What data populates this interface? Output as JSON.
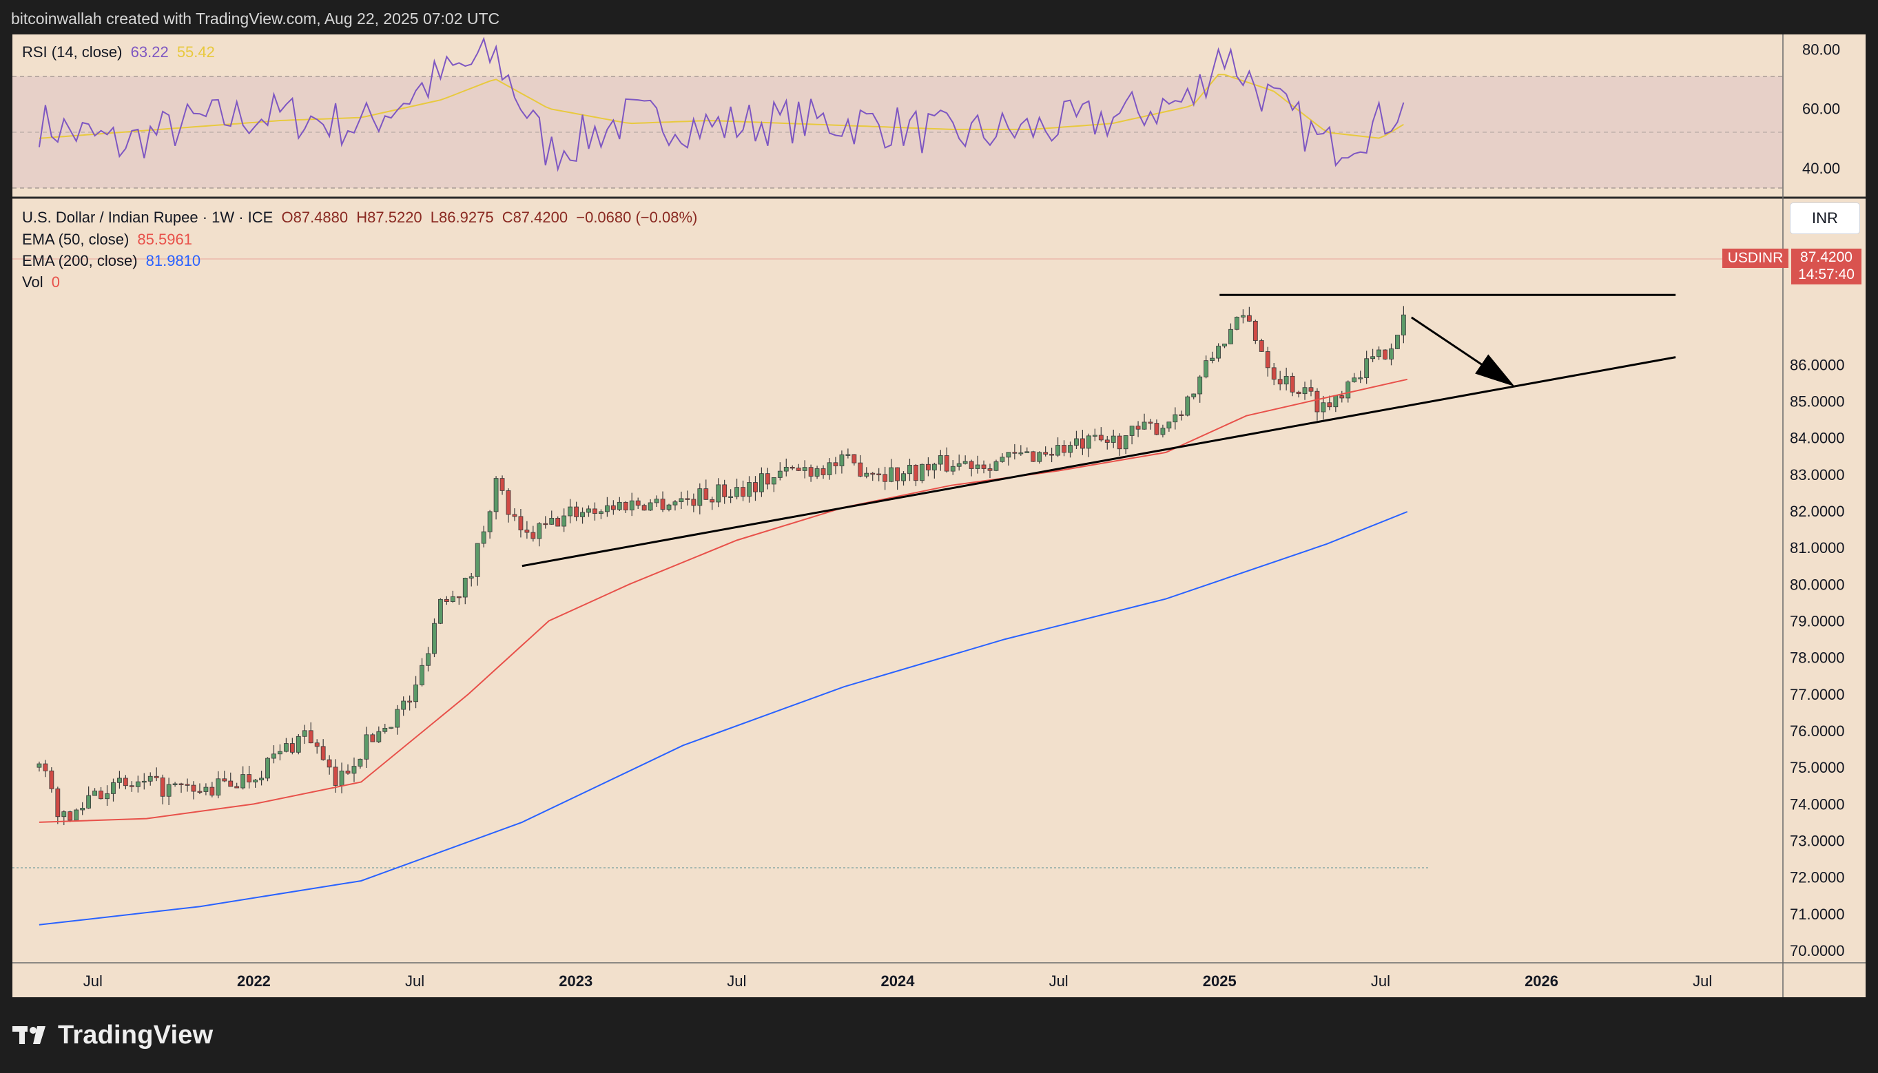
{
  "caption": "bitcoinwallah created with TradingView.com, Aug 22, 2025 07:02 UTC",
  "brand": "TradingView",
  "colors": {
    "ema50": "#e8514a",
    "ema200": "#2962ff",
    "rsi": "#7e57c2",
    "rsi_ma": "#e8c93e",
    "up": "#5b9a68",
    "down": "#d04a45",
    "bg": "#f2e0cc"
  },
  "rsi_legend": {
    "label": "RSI (14, close)",
    "value": "63.22",
    "ma_value": "55.42"
  },
  "main_legend": {
    "title": "U.S. Dollar / Indian Rupee · 1W · ICE",
    "o": "O87.4880",
    "h": "H87.5220",
    "l": "L86.9275",
    "c": "C87.4200",
    "chg": "−0.0680 (−0.08%)",
    "ema50_label": "EMA (50, close)",
    "ema50_value": "85.5961",
    "ema200_label": "EMA (200, close)",
    "ema200_value": "81.9810",
    "vol_label": "Vol",
    "vol_value": "0"
  },
  "currency_button": "INR",
  "price_tag": {
    "symbol": "USDINR",
    "price": "87.4200",
    "countdown": "14:57:40"
  },
  "chart_data": [
    {
      "type": "line",
      "title": "RSI (14, close)",
      "ylim": [
        30,
        85
      ],
      "yticks": [
        "80.00",
        "60.00",
        "40.00"
      ],
      "x": [
        "2021-05",
        "2021-08",
        "2021-11",
        "2022-02",
        "2022-05",
        "2022-08",
        "2022-10",
        "2022-12",
        "2023-03",
        "2023-06",
        "2023-09",
        "2023-12",
        "2024-03",
        "2024-06",
        "2024-09",
        "2024-12",
        "2025-01",
        "2025-03",
        "2025-05",
        "2025-07",
        "2025-08"
      ],
      "series": [
        {
          "name": "RSI",
          "values": [
            55,
            48,
            56,
            58,
            54,
            71,
            78,
            45,
            57,
            54,
            56,
            55,
            51,
            53,
            57,
            63,
            80,
            62,
            47,
            55,
            63.22
          ]
        },
        {
          "name": "MA",
          "values": [
            50,
            52,
            54,
            56,
            57,
            63,
            70,
            60,
            55,
            56,
            55,
            54,
            53,
            53,
            55,
            61,
            72,
            66,
            52,
            50,
            55.42
          ]
        }
      ],
      "bands": [
        70,
        50,
        30
      ]
    },
    {
      "type": "candlestick",
      "title": "U.S. Dollar / Indian Rupee · 1W · ICE",
      "ylim": [
        69.7,
        90.5
      ],
      "yticks": [
        "86.0000",
        "85.0000",
        "84.0000",
        "83.0000",
        "82.0000",
        "81.0000",
        "80.0000",
        "79.0000",
        "78.0000",
        "77.0000",
        "76.0000",
        "75.0000",
        "74.0000",
        "73.0000",
        "72.0000",
        "71.0000",
        "70.0000"
      ],
      "xticks": [
        "Jul",
        "2022",
        "Jul",
        "2023",
        "Jul",
        "2024",
        "Jul",
        "2025",
        "Jul",
        "2026",
        "Jul"
      ],
      "close_points": [
        {
          "x": "2021-05",
          "y": 75.0
        },
        {
          "x": "2021-06",
          "y": 73.4
        },
        {
          "x": "2021-07",
          "y": 74.4
        },
        {
          "x": "2021-09",
          "y": 74.5
        },
        {
          "x": "2021-11",
          "y": 74.3
        },
        {
          "x": "2022-01",
          "y": 74.8
        },
        {
          "x": "2022-03",
          "y": 76.0
        },
        {
          "x": "2022-04",
          "y": 74.5
        },
        {
          "x": "2022-05",
          "y": 75.5
        },
        {
          "x": "2022-07",
          "y": 77.0
        },
        {
          "x": "2022-08",
          "y": 79.7
        },
        {
          "x": "2022-09",
          "y": 80.0
        },
        {
          "x": "2022-10",
          "y": 82.8
        },
        {
          "x": "2022-11",
          "y": 81.2
        },
        {
          "x": "2023-01",
          "y": 82.0
        },
        {
          "x": "2023-03",
          "y": 82.2
        },
        {
          "x": "2023-05",
          "y": 82.3
        },
        {
          "x": "2023-07",
          "y": 82.6
        },
        {
          "x": "2023-09",
          "y": 83.1
        },
        {
          "x": "2023-11",
          "y": 83.3
        },
        {
          "x": "2024-01",
          "y": 83.0
        },
        {
          "x": "2024-03",
          "y": 83.3
        },
        {
          "x": "2024-05",
          "y": 83.4
        },
        {
          "x": "2024-07",
          "y": 83.7
        },
        {
          "x": "2024-09",
          "y": 83.9
        },
        {
          "x": "2024-11",
          "y": 84.4
        },
        {
          "x": "2024-12",
          "y": 85.2
        },
        {
          "x": "2025-01",
          "y": 86.6
        },
        {
          "x": "2025-02",
          "y": 87.3
        },
        {
          "x": "2025-03",
          "y": 85.8
        },
        {
          "x": "2025-04",
          "y": 85.3
        },
        {
          "x": "2025-05",
          "y": 84.8
        },
        {
          "x": "2025-06",
          "y": 85.8
        },
        {
          "x": "2025-07",
          "y": 86.2
        },
        {
          "x": "2025-08",
          "y": 87.42
        }
      ],
      "series": [
        {
          "name": "EMA (50, close)",
          "points": [
            {
              "x": "2021-05",
              "y": 73.5
            },
            {
              "x": "2021-09",
              "y": 73.6
            },
            {
              "x": "2022-01",
              "y": 74.0
            },
            {
              "x": "2022-05",
              "y": 74.6
            },
            {
              "x": "2022-09",
              "y": 77.0
            },
            {
              "x": "2022-12",
              "y": 79.0
            },
            {
              "x": "2023-03",
              "y": 80.0
            },
            {
              "x": "2023-07",
              "y": 81.2
            },
            {
              "x": "2023-11",
              "y": 82.1
            },
            {
              "x": "2024-03",
              "y": 82.7
            },
            {
              "x": "2024-07",
              "y": 83.1
            },
            {
              "x": "2024-11",
              "y": 83.6
            },
            {
              "x": "2025-02",
              "y": 84.6
            },
            {
              "x": "2025-05",
              "y": 85.1
            },
            {
              "x": "2025-08",
              "y": 85.5961
            }
          ]
        },
        {
          "name": "EMA (200, close)",
          "points": [
            {
              "x": "2021-05",
              "y": 70.7
            },
            {
              "x": "2021-11",
              "y": 71.2
            },
            {
              "x": "2022-05",
              "y": 71.9
            },
            {
              "x": "2022-11",
              "y": 73.5
            },
            {
              "x": "2023-05",
              "y": 75.6
            },
            {
              "x": "2023-11",
              "y": 77.2
            },
            {
              "x": "2024-05",
              "y": 78.5
            },
            {
              "x": "2024-11",
              "y": 79.6
            },
            {
              "x": "2025-05",
              "y": 81.1
            },
            {
              "x": "2025-08",
              "y": 81.981
            }
          ]
        }
      ],
      "annotations": [
        {
          "type": "trendline",
          "from": {
            "x": "2022-11",
            "y": 80.5
          },
          "to": {
            "x": "2026-06",
            "y": 86.2
          }
        },
        {
          "type": "horizontal-resistance",
          "from": {
            "x": "2025-01",
            "y": 87.9
          },
          "to": {
            "x": "2026-06",
            "y": 87.9
          }
        },
        {
          "type": "arrow",
          "from": {
            "x": "2025-08",
            "y": 87.4
          },
          "to": {
            "x": "2025-12",
            "y": 85.4
          }
        }
      ]
    }
  ]
}
